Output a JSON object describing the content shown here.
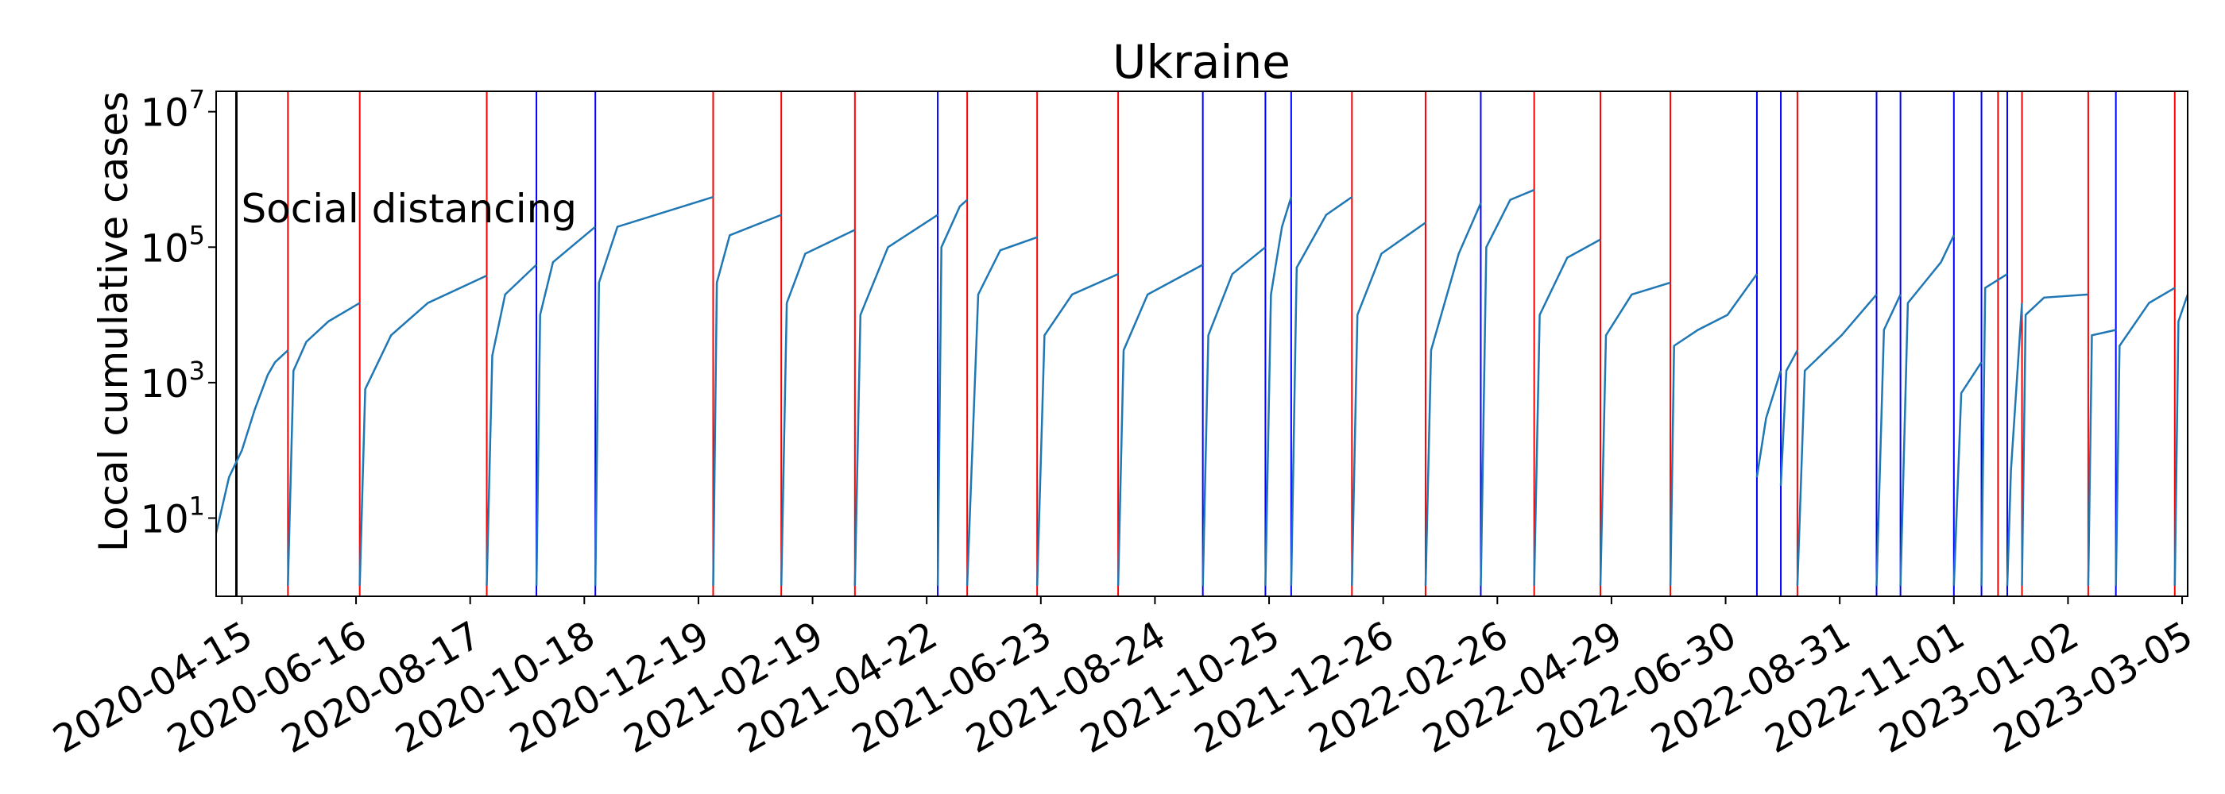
{
  "chart_data": {
    "type": "line",
    "title": "Ukraine",
    "xlabel": "",
    "ylabel": "Local cumulative cases",
    "y_scale": "log",
    "ylim": [
      0.7,
      20000000
    ],
    "xlim": [
      "2020-04-01",
      "2023-03-08"
    ],
    "y_ticks": [
      {
        "base": "10",
        "exp": "1",
        "value": 10
      },
      {
        "base": "10",
        "exp": "3",
        "value": 1000
      },
      {
        "base": "10",
        "exp": "5",
        "value": 100000
      },
      {
        "base": "10",
        "exp": "7",
        "value": 10000000
      }
    ],
    "x_ticks": [
      "2020-04-15",
      "2020-06-16",
      "2020-08-17",
      "2020-10-18",
      "2020-12-19",
      "2021-02-19",
      "2021-04-22",
      "2021-06-23",
      "2021-08-24",
      "2021-10-25",
      "2021-12-26",
      "2022-02-26",
      "2022-04-29",
      "2022-06-30",
      "2022-08-31",
      "2022-11-01",
      "2023-01-02",
      "2023-03-05"
    ],
    "grid": false,
    "series_color": "#1f77b4",
    "annotation": {
      "label": "Social distancing",
      "date": "2020-04-12",
      "color": "#000000"
    },
    "red_lines": [
      "2020-05-10",
      "2020-06-18",
      "2020-08-26",
      "2020-12-27",
      "2021-02-02",
      "2021-03-14",
      "2021-05-14",
      "2021-06-21",
      "2021-08-04",
      "2021-12-09",
      "2022-01-18",
      "2022-03-18",
      "2022-04-23",
      "2022-05-31",
      "2022-08-08",
      "2022-11-25",
      "2022-12-08",
      "2023-01-13",
      "2023-03-01"
    ],
    "blue_lines": [
      "2020-09-22",
      "2020-10-24",
      "2021-04-28",
      "2021-09-19",
      "2021-10-23",
      "2021-11-06",
      "2022-02-17",
      "2022-07-17",
      "2022-07-30",
      "2022-09-20",
      "2022-10-03",
      "2022-11-01",
      "2022-11-16",
      "2022-11-30",
      "2023-01-28"
    ],
    "segments": [
      {
        "x": [
          "2020-04-01",
          "2020-04-08",
          "2020-04-15",
          "2020-04-22",
          "2020-04-29",
          "2020-05-03",
          "2020-05-10"
        ],
        "y": [
          6,
          40,
          100,
          400,
          1300,
          2000,
          3000
        ]
      },
      {
        "x": [
          "2020-05-10",
          "2020-05-13",
          "2020-05-20",
          "2020-06-01",
          "2020-06-18"
        ],
        "y": [
          1,
          1500,
          4000,
          8000,
          15000
        ]
      },
      {
        "x": [
          "2020-06-18",
          "2020-06-21",
          "2020-07-05",
          "2020-07-25",
          "2020-08-26"
        ],
        "y": [
          1,
          800,
          5000,
          15000,
          38000
        ]
      },
      {
        "x": [
          "2020-08-26",
          "2020-08-29",
          "2020-09-05",
          "2020-09-22"
        ],
        "y": [
          1,
          2500,
          20000,
          55000
        ]
      },
      {
        "x": [
          "2020-09-22",
          "2020-09-24",
          "2020-10-01",
          "2020-10-24"
        ],
        "y": [
          1,
          10000,
          60000,
          200000
        ]
      },
      {
        "x": [
          "2020-10-24",
          "2020-10-26",
          "2020-11-05",
          "2020-12-27"
        ],
        "y": [
          1,
          30000,
          200000,
          550000
        ]
      },
      {
        "x": [
          "2020-12-27",
          "2020-12-29",
          "2021-01-05",
          "2021-02-02"
        ],
        "y": [
          1,
          30000,
          150000,
          300000
        ]
      },
      {
        "x": [
          "2021-02-02",
          "2021-02-05",
          "2021-02-15",
          "2021-03-14"
        ],
        "y": [
          1,
          15000,
          80000,
          180000
        ]
      },
      {
        "x": [
          "2021-03-14",
          "2021-03-17",
          "2021-04-01",
          "2021-04-28"
        ],
        "y": [
          1,
          10000,
          100000,
          300000
        ]
      },
      {
        "x": [
          "2021-04-28",
          "2021-04-30",
          "2021-05-10",
          "2021-05-14"
        ],
        "y": [
          1,
          100000,
          400000,
          500000
        ]
      },
      {
        "x": [
          "2021-05-14",
          "2021-05-20",
          "2021-06-01",
          "2021-06-21"
        ],
        "y": [
          1,
          20000,
          90000,
          140000
        ]
      },
      {
        "x": [
          "2021-06-21",
          "2021-06-25",
          "2021-07-10",
          "2021-08-04"
        ],
        "y": [
          1,
          5000,
          20000,
          40000
        ]
      },
      {
        "x": [
          "2021-08-04",
          "2021-08-07",
          "2021-08-20",
          "2021-09-19"
        ],
        "y": [
          1,
          3000,
          20000,
          55000
        ]
      },
      {
        "x": [
          "2021-09-19",
          "2021-09-22",
          "2021-10-05",
          "2021-10-23"
        ],
        "y": [
          1,
          5000,
          40000,
          100000
        ]
      },
      {
        "x": [
          "2021-10-23",
          "2021-10-26",
          "2021-11-01",
          "2021-11-06"
        ],
        "y": [
          1,
          20000,
          200000,
          550000
        ]
      },
      {
        "x": [
          "2021-11-06",
          "2021-11-09",
          "2021-11-25",
          "2021-12-09"
        ],
        "y": [
          1,
          50000,
          300000,
          550000
        ]
      },
      {
        "x": [
          "2021-12-09",
          "2021-12-12",
          "2021-12-25",
          "2022-01-18"
        ],
        "y": [
          1,
          10000,
          80000,
          230000
        ]
      },
      {
        "x": [
          "2022-01-18",
          "2022-01-21",
          "2022-02-05",
          "2022-02-17"
        ],
        "y": [
          1,
          3000,
          80000,
          450000
        ]
      },
      {
        "x": [
          "2022-02-17",
          "2022-02-20",
          "2022-03-05",
          "2022-03-18"
        ],
        "y": [
          1,
          100000,
          500000,
          700000
        ]
      },
      {
        "x": [
          "2022-03-18",
          "2022-03-21",
          "2022-04-05",
          "2022-04-23"
        ],
        "y": [
          1,
          10000,
          70000,
          130000
        ]
      },
      {
        "x": [
          "2022-04-23",
          "2022-04-26",
          "2022-05-10",
          "2022-05-31"
        ],
        "y": [
          1,
          5000,
          20000,
          30000
        ]
      },
      {
        "x": [
          "2022-05-31",
          "2022-06-02",
          "2022-06-15",
          "2022-07-01",
          "2022-07-17"
        ],
        "y": [
          1,
          3500,
          6000,
          10000,
          40000
        ]
      },
      {
        "x": [
          "2022-07-17",
          "2022-07-22",
          "2022-07-30"
        ],
        "y": [
          40,
          300,
          1500
        ]
      },
      {
        "x": [
          "2022-07-30",
          "2022-08-02",
          "2022-08-08"
        ],
        "y": [
          30,
          1500,
          3000
        ]
      },
      {
        "x": [
          "2022-08-08",
          "2022-08-12",
          "2022-09-01",
          "2022-09-20"
        ],
        "y": [
          1,
          1500,
          5000,
          20000
        ]
      },
      {
        "x": [
          "2022-09-20",
          "2022-09-24",
          "2022-10-03"
        ],
        "y": [
          1,
          6000,
          20000
        ]
      },
      {
        "x": [
          "2022-10-03",
          "2022-10-07",
          "2022-10-25",
          "2022-11-01"
        ],
        "y": [
          1,
          15000,
          60000,
          150000
        ]
      },
      {
        "x": [
          "2022-11-01",
          "2022-11-05",
          "2022-11-16"
        ],
        "y": [
          1,
          700,
          2000
        ]
      },
      {
        "x": [
          "2022-11-16",
          "2022-11-18",
          "2022-11-30"
        ],
        "y": [
          1,
          25000,
          40000
        ]
      },
      {
        "x": [
          "2022-11-30",
          "2022-12-02",
          "2022-12-08"
        ],
        "y": [
          1,
          50,
          15000
        ]
      },
      {
        "x": [
          "2022-12-08",
          "2022-12-10",
          "2022-12-20",
          "2023-01-13"
        ],
        "y": [
          1,
          10000,
          18000,
          20000
        ]
      },
      {
        "x": [
          "2023-01-13",
          "2023-01-15",
          "2023-01-28"
        ],
        "y": [
          1,
          5000,
          6000
        ]
      },
      {
        "x": [
          "2023-01-28",
          "2023-01-30",
          "2023-02-15",
          "2023-03-01"
        ],
        "y": [
          1,
          3500,
          15000,
          25000
        ]
      },
      {
        "x": [
          "2023-03-01",
          "2023-03-03",
          "2023-03-08"
        ],
        "y": [
          1,
          8000,
          20000
        ]
      }
    ]
  }
}
